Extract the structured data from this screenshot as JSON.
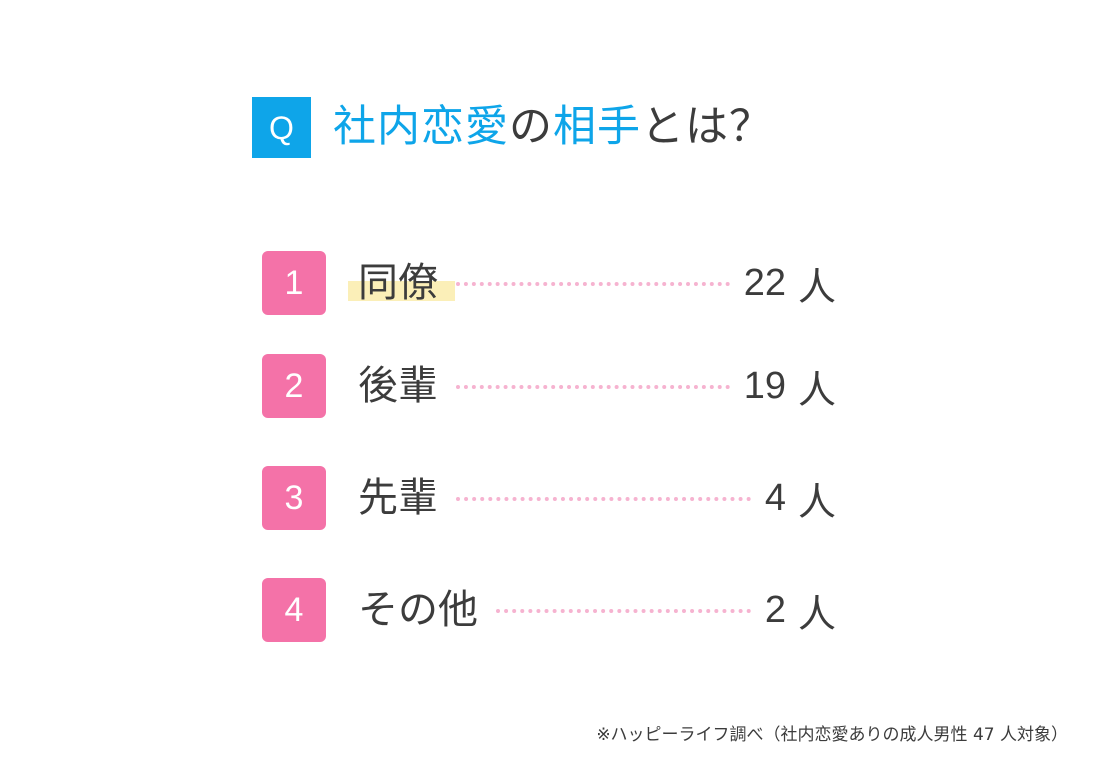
{
  "question": {
    "badge": "Q",
    "title_parts": [
      "社内恋愛",
      "の",
      "相手",
      "とは？"
    ]
  },
  "chart_data": {
    "type": "table",
    "title": "社内恋愛の相手とは？",
    "unit": "人",
    "rows": [
      {
        "rank": "1",
        "label": "同僚",
        "value": 22
      },
      {
        "rank": "2",
        "label": "後輩",
        "value": 19
      },
      {
        "rank": "3",
        "label": "先輩",
        "value": 4
      },
      {
        "rank": "4",
        "label": "その他",
        "value": 2
      }
    ]
  },
  "source": "※ハッピーライフ調べ（社内恋愛ありの成人男性 47 人対象）",
  "colors": {
    "accent": "#0ea5e9",
    "rank_badge": "#f472a8",
    "leader_dots": "#f6b3d0",
    "highlight": "#fbefb8",
    "text": "#3c3c3c"
  }
}
